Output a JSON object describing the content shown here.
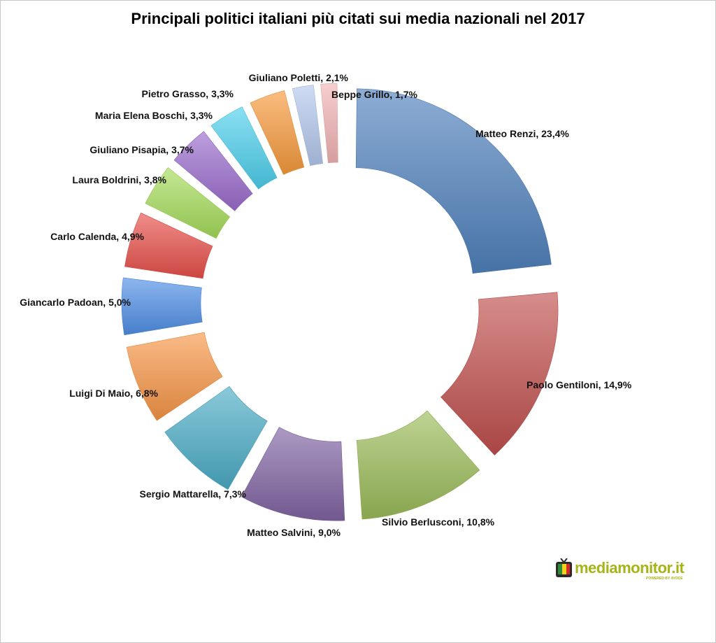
{
  "chart_data": {
    "type": "pie",
    "title": "Principali politici italiani più citati sui media nazionali nel 2017",
    "slices": [
      {
        "label": "Matteo Renzi, 23,4%",
        "value": 23.4,
        "color": "#4f81bd"
      },
      {
        "label": "Paolo Gentiloni, 14,9%",
        "value": 14.9,
        "color": "#c0504d"
      },
      {
        "label": "Silvio Berlusconi, 10,8%",
        "value": 10.8,
        "color": "#9bbb59"
      },
      {
        "label": "Matteo Salvini, 9,0%",
        "value": 9.0,
        "color": "#8064a2"
      },
      {
        "label": "Sergio Mattarella, 7,3%",
        "value": 7.3,
        "color": "#4bacc6"
      },
      {
        "label": "Luigi Di Maio, 6,8%",
        "value": 6.8,
        "color": "#f79646"
      },
      {
        "label": "Giancarlo Padoan, 5,0%",
        "value": 5.0,
        "color": "#4f8fe6"
      },
      {
        "label": "Carlo Calenda, 4,9%",
        "value": 4.9,
        "color": "#e8504a"
      },
      {
        "label": "Laura Boldrini, 3,8%",
        "value": 3.8,
        "color": "#a5dc5a"
      },
      {
        "label": "Giuliano Pisapia, 3,7%",
        "value": 3.7,
        "color": "#9a6ccc"
      },
      {
        "label": "Maria Elena Boschi, 3,3%",
        "value": 3.3,
        "color": "#4cd0ec"
      },
      {
        "label": "Pietro Grasso, 3,3%",
        "value": 3.3,
        "color": "#f79a3c"
      },
      {
        "label": "Giuliano Poletti, 2,1%",
        "value": 2.1,
        "color": "#b4c8ec"
      },
      {
        "label": "Beppe Grillo, 1,7%",
        "value": 1.7,
        "color": "#f2b4b4"
      }
    ],
    "legend": "none"
  },
  "logo": {
    "text": "mediamonitor.it",
    "subtext": "POWERED BY 4VOCE"
  }
}
